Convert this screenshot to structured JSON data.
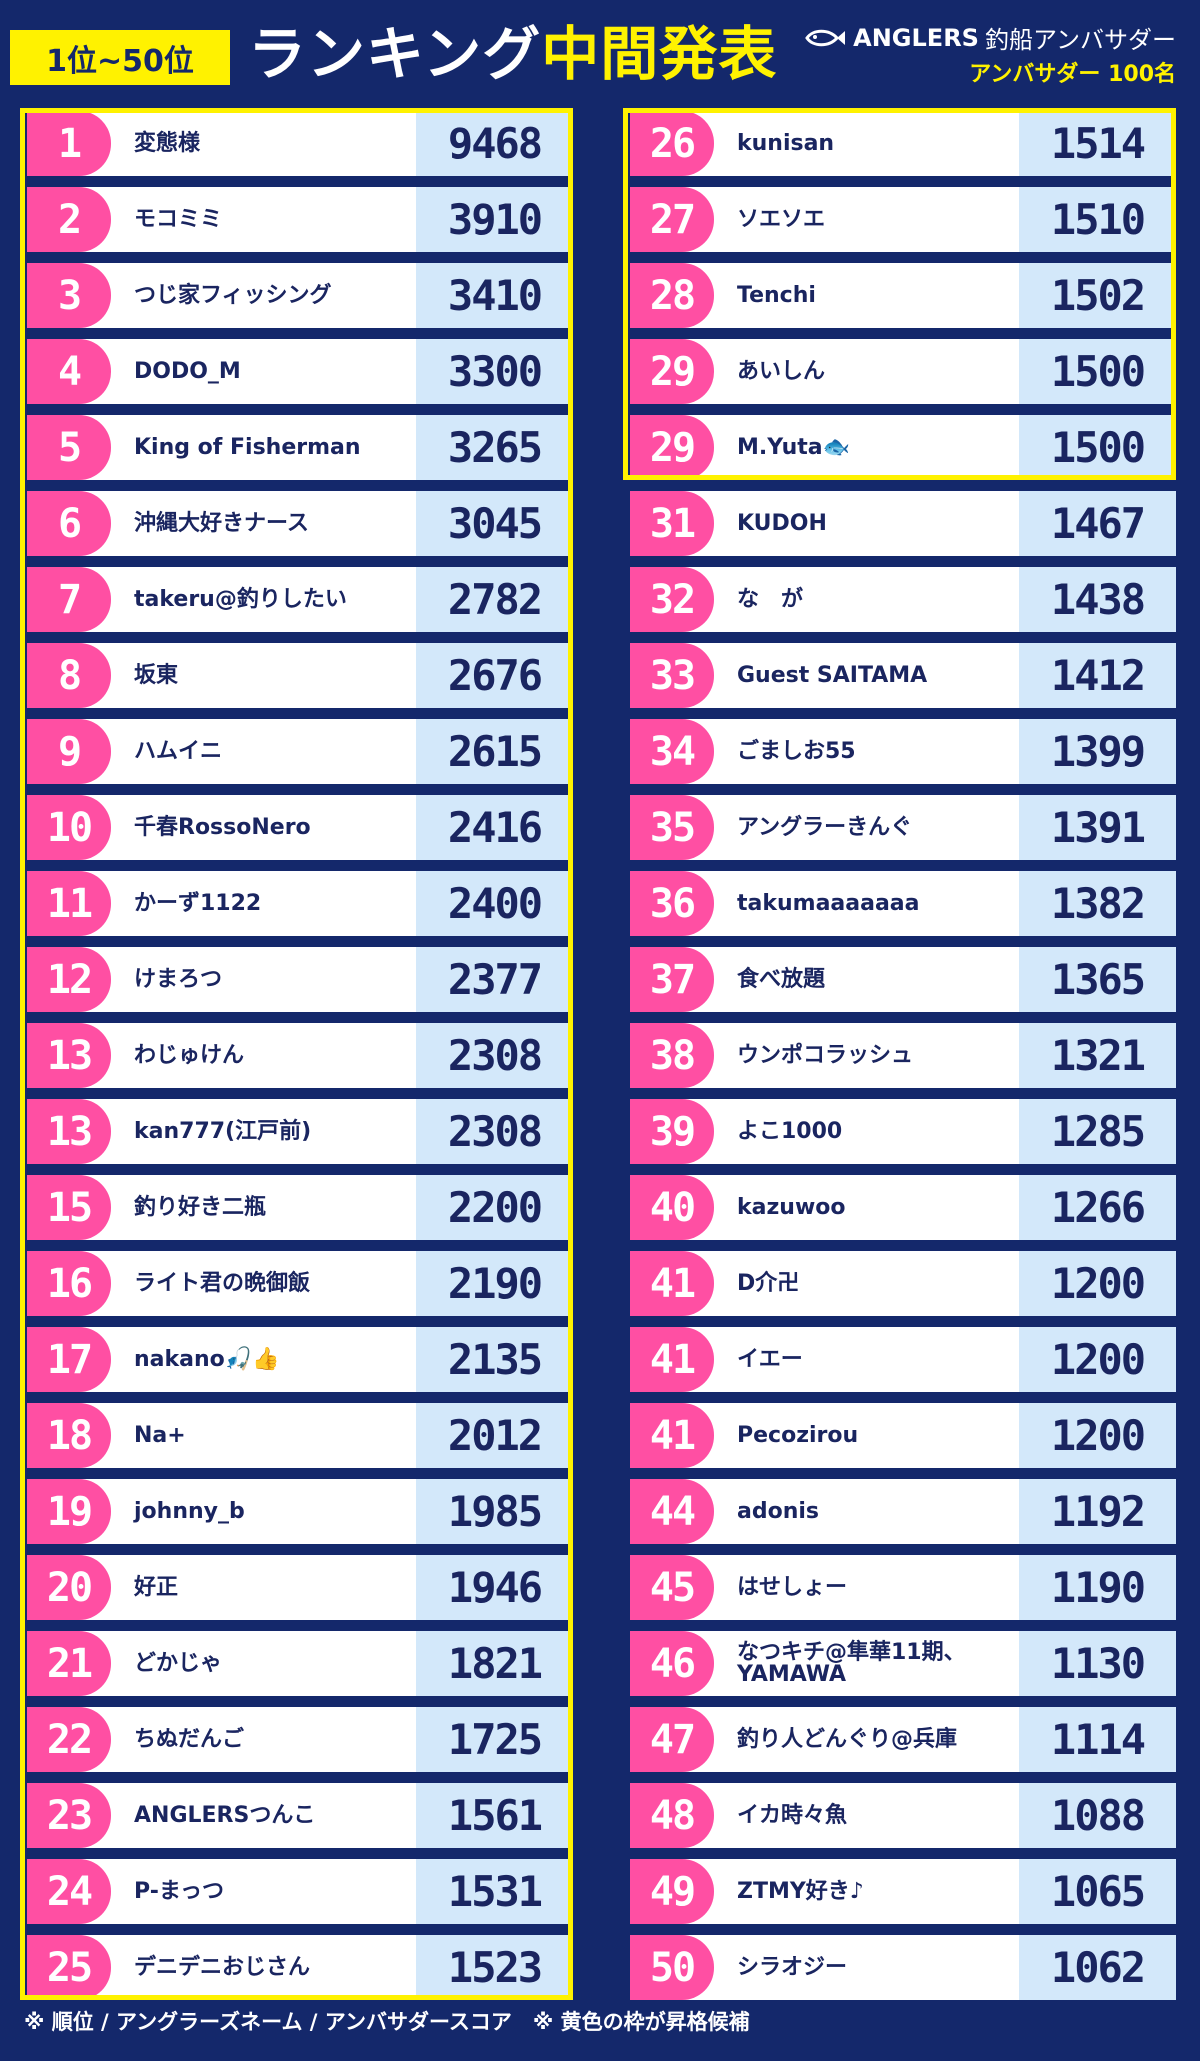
{
  "header": {
    "range_label": "1位~50位",
    "title_white": "ランキング",
    "title_yellow": "中間発表",
    "brand_name": "ANGLERS",
    "brand_sub": "釣船アンバサダー",
    "brand_count": "アンバサダー 100名",
    "brand_icon": "fish-logo-icon"
  },
  "colors": {
    "background": "#14286b",
    "rank_pink": "#ff4fa3",
    "score_bg": "#d3e8fa",
    "highlight_yellow": "#fff200"
  },
  "rankings": {
    "columns": [
      "順位",
      "アングラーズネーム",
      "アンバサダースコア"
    ],
    "rows": [
      {
        "rank": "1",
        "name": "変態様",
        "score": "9468"
      },
      {
        "rank": "2",
        "name": "モコミミ",
        "score": "3910"
      },
      {
        "rank": "3",
        "name": "つじ家フィッシング",
        "score": "3410"
      },
      {
        "rank": "4",
        "name": "DODO_M",
        "score": "3300"
      },
      {
        "rank": "5",
        "name": "King of Fisherman",
        "score": "3265"
      },
      {
        "rank": "6",
        "name": "沖縄大好きナース",
        "score": "3045"
      },
      {
        "rank": "7",
        "name": "takeru@釣りしたい",
        "score": "2782"
      },
      {
        "rank": "8",
        "name": "坂東",
        "score": "2676"
      },
      {
        "rank": "9",
        "name": "ハムイニ",
        "score": "2615"
      },
      {
        "rank": "10",
        "name": "千春RossoNero",
        "score": "2416"
      },
      {
        "rank": "11",
        "name": "かーず1122",
        "score": "2400"
      },
      {
        "rank": "12",
        "name": "けまろつ",
        "score": "2377"
      },
      {
        "rank": "13",
        "name": "わじゅけん",
        "score": "2308"
      },
      {
        "rank": "13",
        "name": "kan777(江戸前)",
        "score": "2308"
      },
      {
        "rank": "15",
        "name": "釣り好き二瓶",
        "score": "2200"
      },
      {
        "rank": "16",
        "name": "ライト君の晩御飯",
        "score": "2190"
      },
      {
        "rank": "17",
        "name": "nakano🎣👍",
        "score": "2135"
      },
      {
        "rank": "18",
        "name": "Na+",
        "score": "2012"
      },
      {
        "rank": "19",
        "name": "johnny_b",
        "score": "1985"
      },
      {
        "rank": "20",
        "name": "好正",
        "score": "1946"
      },
      {
        "rank": "21",
        "name": "どかじゃ",
        "score": "1821"
      },
      {
        "rank": "22",
        "name": "ちぬだんご",
        "score": "1725"
      },
      {
        "rank": "23",
        "name": "ANGLERSつんこ",
        "score": "1561"
      },
      {
        "rank": "24",
        "name": "P-まっつ",
        "score": "1531"
      },
      {
        "rank": "25",
        "name": "デニデニおじさん",
        "score": "1523"
      },
      {
        "rank": "26",
        "name": "kunisan",
        "score": "1514"
      },
      {
        "rank": "27",
        "name": "ソエソエ",
        "score": "1510"
      },
      {
        "rank": "28",
        "name": "Tenchi",
        "score": "1502"
      },
      {
        "rank": "29",
        "name": "あいしん",
        "score": "1500"
      },
      {
        "rank": "29",
        "name": "M.Yuta🐟",
        "score": "1500"
      },
      {
        "rank": "31",
        "name": "KUDOH",
        "score": "1467"
      },
      {
        "rank": "32",
        "name": "な　が",
        "score": "1438"
      },
      {
        "rank": "33",
        "name": "Guest SAITAMA",
        "score": "1412"
      },
      {
        "rank": "34",
        "name": "ごましお55",
        "score": "1399"
      },
      {
        "rank": "35",
        "name": "アングラーきんぐ",
        "score": "1391"
      },
      {
        "rank": "36",
        "name": "takumaaaaaaa",
        "score": "1382"
      },
      {
        "rank": "37",
        "name": "食べ放題",
        "score": "1365"
      },
      {
        "rank": "38",
        "name": "ウンポコラッシュ",
        "score": "1321"
      },
      {
        "rank": "39",
        "name": "よこ1000",
        "score": "1285"
      },
      {
        "rank": "40",
        "name": "kazuwoo",
        "score": "1266"
      },
      {
        "rank": "41",
        "name": "D介卍",
        "score": "1200"
      },
      {
        "rank": "41",
        "name": "イエー",
        "score": "1200"
      },
      {
        "rank": "41",
        "name": "Pecozirou",
        "score": "1200"
      },
      {
        "rank": "44",
        "name": "adonis",
        "score": "1192"
      },
      {
        "rank": "45",
        "name": "はせしょー",
        "score": "1190"
      },
      {
        "rank": "46",
        "name": "なつキチ@隼華11期、\nYAMAWA",
        "score": "1130"
      },
      {
        "rank": "47",
        "name": "釣り人どんぐり@兵庫",
        "score": "1114"
      },
      {
        "rank": "48",
        "name": "イカ時々魚",
        "score": "1088"
      },
      {
        "rank": "49",
        "name": "ZTMY好き♪",
        "score": "1065"
      },
      {
        "rank": "50",
        "name": "シラオジー",
        "score": "1062"
      }
    ]
  },
  "footer": {
    "note": "※ 順位 / アングラーズネーム / アンバサダースコア　※ 黄色の枠が昇格候補"
  }
}
